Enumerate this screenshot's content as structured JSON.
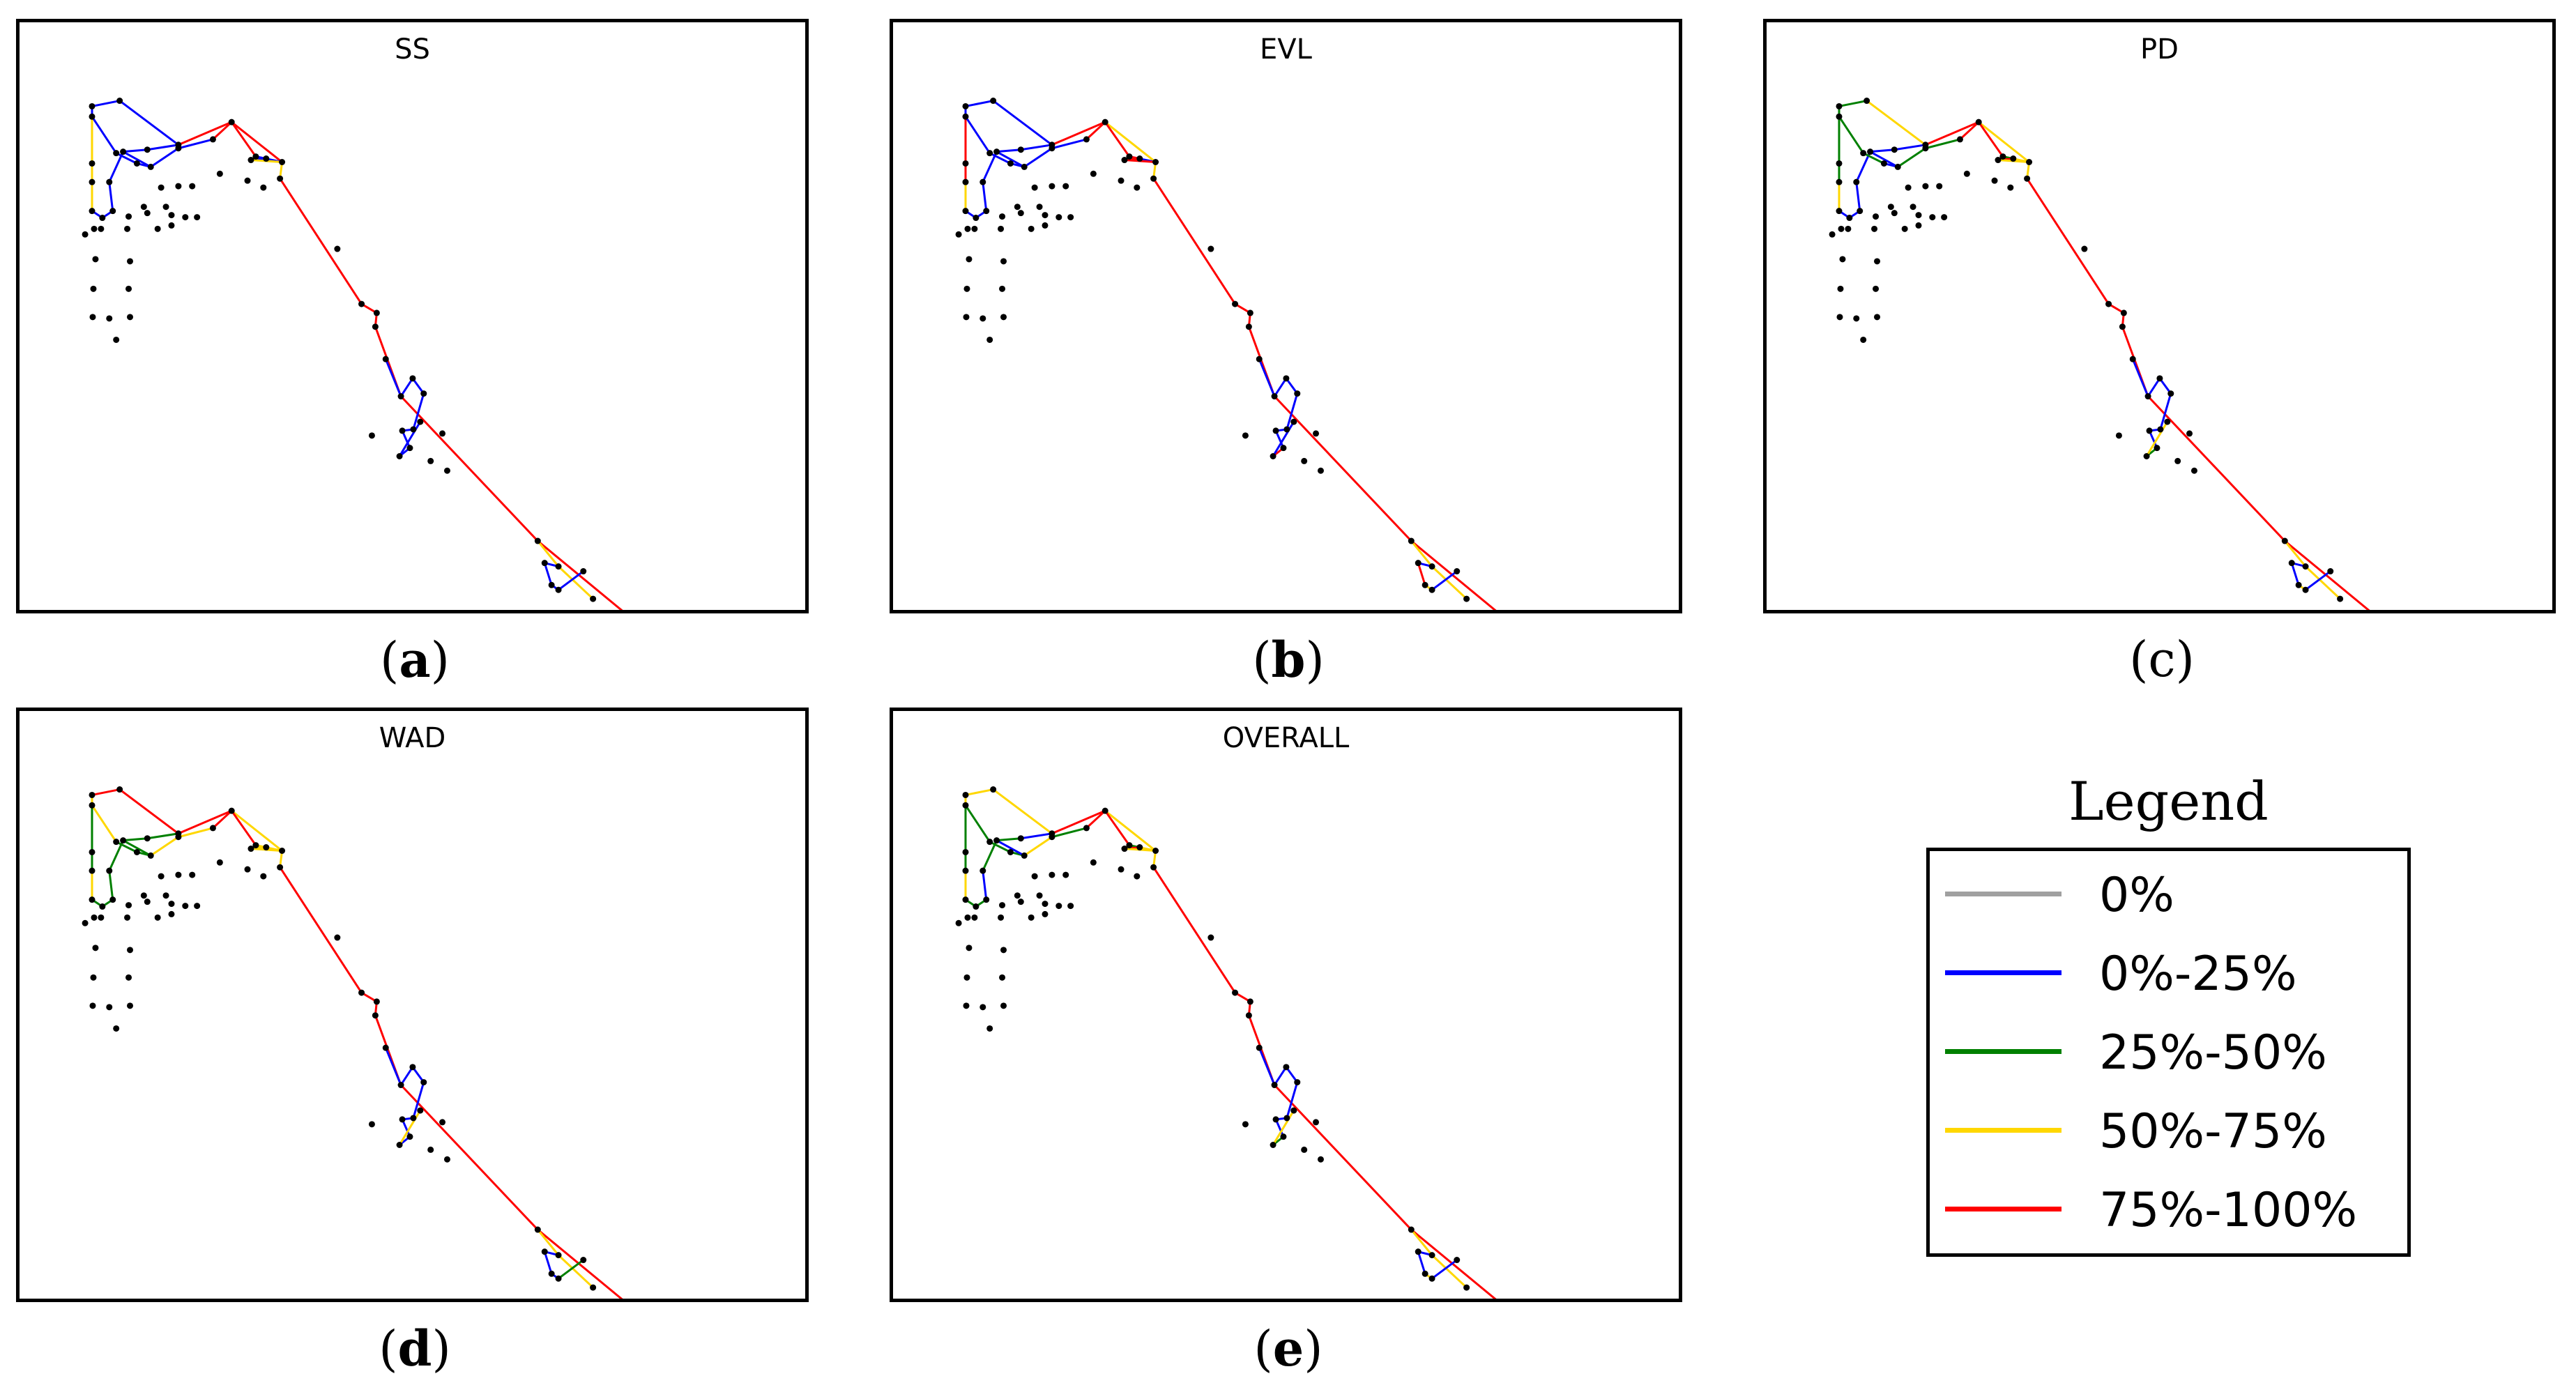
{
  "colors": {
    "0%": "#a0a0a0",
    "0%-25%": "#0000ff",
    "25%-50%": "#008000",
    "50%-75%": "#ffd700",
    "75%-100%": "#ff0000"
  },
  "panels": [
    {
      "id": "a",
      "title": "SS",
      "caption_label": "a",
      "pipe_classes": [
        "0%-25%",
        "0%-25%",
        "0%-25%",
        "50%-75%",
        "50%-75%",
        "0%-25%",
        "0%-25%",
        "0%-25%",
        "0%-25%",
        "0%-25%",
        "0%-25%",
        "75%-100%",
        "0%-25%",
        "0%-25%",
        "0%-25%",
        "0%-25%",
        "0%-25%",
        "0%-25%",
        "75%-100%",
        "75%-100%",
        "0%-25%",
        "0%-25%",
        "0%-25%",
        "75%-100%",
        "50%-75%",
        "50%-75%",
        "75%-100%",
        "75%-100%",
        "75%-100%",
        "75%-100%",
        "75%-100%",
        "0%-25%",
        "0%-25%",
        "0%-25%",
        "0%-25%",
        "0%-25%",
        "0%-25%",
        "0%-25%",
        "0%-25%",
        "75%-100%",
        "75%-100%",
        "50%-75%",
        "50%-75%",
        "0%-25%",
        "0%-25%",
        "0%-25%",
        "0%-25%"
      ]
    },
    {
      "id": "b",
      "title": "EVL",
      "caption_label": "b",
      "pipe_classes": [
        "0%-25%",
        "0%-25%",
        "0%-25%",
        "75%-100%",
        "50%-75%",
        "0%-25%",
        "0%-25%",
        "0%-25%",
        "0%-25%",
        "0%-25%",
        "0%-25%",
        "75%-100%",
        "0%-25%",
        "0%-25%",
        "0%-25%",
        "0%-25%",
        "0%-25%",
        "0%-25%",
        "75%-100%",
        "50%-75%",
        "0%-25%",
        "75%-100%",
        "75%-100%",
        "75%-100%",
        "75%-100%",
        "50%-75%",
        "75%-100%",
        "75%-100%",
        "75%-100%",
        "75%-100%",
        "75%-100%",
        "0%-25%",
        "0%-25%",
        "0%-25%",
        "0%-25%",
        "0%-25%",
        "0%-25%",
        "75%-100%",
        "0%-25%",
        "75%-100%",
        "75%-100%",
        "50%-75%",
        "50%-75%",
        "0%-25%",
        "75%-100%",
        "50%-75%",
        "0%-25%"
      ]
    },
    {
      "id": "c",
      "title": "PD",
      "caption_label": "c",
      "pipe_classes": [
        "25%-50%",
        "25%-50%",
        "50%-75%",
        "25%-50%",
        "50%-75%",
        "0%-25%",
        "0%-25%",
        "0%-25%",
        "0%-25%",
        "0%-25%",
        "0%-25%",
        "75%-100%",
        "25%-50%",
        "25%-50%",
        "0%-25%",
        "0%-25%",
        "25%-50%",
        "25%-50%",
        "75%-100%",
        "50%-75%",
        "50%-75%",
        "25%-50%",
        "75%-100%",
        "75%-100%",
        "50%-75%",
        "50%-75%",
        "75%-100%",
        "75%-100%",
        "75%-100%",
        "75%-100%",
        "75%-100%",
        "0%-25%",
        "0%-25%",
        "0%-25%",
        "0%-25%",
        "0%-25%",
        "0%-25%",
        "25%-50%",
        "50%-75%",
        "75%-100%",
        "75%-100%",
        "50%-75%",
        "50%-75%",
        "0%-25%",
        "0%-25%",
        "50%-75%",
        "0%-25%"
      ]
    },
    {
      "id": "d",
      "title": "WAD",
      "caption_label": "d",
      "pipe_classes": [
        "50%-75%",
        "75%-100%",
        "75%-100%",
        "25%-50%",
        "50%-75%",
        "25%-50%",
        "25%-50%",
        "25%-50%",
        "25%-50%",
        "25%-50%",
        "25%-50%",
        "75%-100%",
        "50%-75%",
        "25%-50%",
        "25%-50%",
        "25%-50%",
        "50%-75%",
        "50%-75%",
        "75%-100%",
        "50%-75%",
        "50%-75%",
        "50%-75%",
        "50%-75%",
        "75%-100%",
        "50%-75%",
        "50%-75%",
        "75%-100%",
        "75%-100%",
        "75%-100%",
        "75%-100%",
        "75%-100%",
        "0%-25%",
        "0%-25%",
        "0%-25%",
        "0%-25%",
        "0%-25%",
        "0%-25%",
        "0%-25%",
        "50%-75%",
        "75%-100%",
        "75%-100%",
        "50%-75%",
        "50%-75%",
        "0%-25%",
        "0%-25%",
        "0%-25%",
        "25%-50%"
      ]
    },
    {
      "id": "e",
      "title": "OVERALL",
      "caption_label": "e",
      "pipe_classes": [
        "50%-75%",
        "50%-75%",
        "50%-75%",
        "25%-50%",
        "50%-75%",
        "25%-50%",
        "25%-50%",
        "0%-25%",
        "25%-50%",
        "25%-50%",
        "0%-25%",
        "75%-100%",
        "25%-50%",
        "25%-50%",
        "25%-50%",
        "0%-25%",
        "50%-75%",
        "25%-50%",
        "75%-100%",
        "50%-75%",
        "50%-75%",
        "25%-50%",
        "75%-100%",
        "75%-100%",
        "50%-75%",
        "50%-75%",
        "75%-100%",
        "75%-100%",
        "75%-100%",
        "75%-100%",
        "75%-100%",
        "0%-25%",
        "0%-25%",
        "0%-25%",
        "0%-25%",
        "0%-25%",
        "0%-25%",
        "25%-50%",
        "50%-75%",
        "75%-100%",
        "75%-100%",
        "50%-75%",
        "50%-75%",
        "0%-25%",
        "0%-25%",
        "50%-75%",
        "0%-25%"
      ]
    }
  ],
  "legend": {
    "title": "Legend",
    "items": [
      {
        "label": "0%",
        "class": "0%"
      },
      {
        "label": "0%-25%",
        "class": "0%-25%"
      },
      {
        "label": "25%-50%",
        "class": "25%-50%"
      },
      {
        "label": "50%-75%",
        "class": "50%-75%"
      },
      {
        "label": "75%-100%",
        "class": "75%-100%"
      }
    ]
  }
}
